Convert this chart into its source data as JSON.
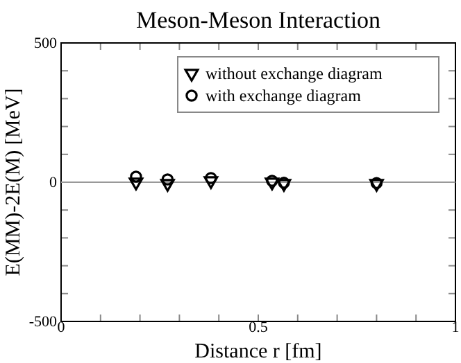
{
  "chart_data": {
    "type": "scatter",
    "title": "Meson-Meson Interaction",
    "xlabel": "Distance r [fm]",
    "ylabel": "E(MM)-2E(M) [MeV]",
    "xlim": [
      0,
      1
    ],
    "ylim": [
      -500,
      500
    ],
    "xticks": [
      0,
      {
        "value": 0.1,
        "label": null
      },
      {
        "value": 0.2,
        "label": null
      },
      {
        "value": 0.3,
        "label": null
      },
      {
        "value": 0.4,
        "label": null
      },
      0.5,
      {
        "value": 0.6,
        "label": null
      },
      {
        "value": 0.7,
        "label": null
      },
      {
        "value": 0.8,
        "label": null
      },
      {
        "value": 0.9,
        "label": null
      },
      1
    ],
    "yticks": [
      -500,
      {
        "value": -400,
        "label": null
      },
      {
        "value": -300,
        "label": null
      },
      {
        "value": -200,
        "label": null
      },
      {
        "value": -100,
        "label": null
      },
      0,
      {
        "value": 100,
        "label": null
      },
      {
        "value": 200,
        "label": null
      },
      {
        "value": 300,
        "label": null
      },
      {
        "value": 400,
        "label": null
      },
      500
    ],
    "x": [
      0.19,
      0.27,
      0.38,
      0.535,
      0.565,
      0.8
    ],
    "legend": "top right",
    "grid": false,
    "ref_lines": [
      {
        "axis": "y",
        "value": 0,
        "color": "#999999"
      }
    ],
    "series": [
      {
        "name": "without exchange diagram",
        "color": "#000000",
        "marker": "triangle",
        "values": [
          0,
          -5,
          5,
          0,
          -5,
          -5
        ]
      },
      {
        "name": "with exchange diagram",
        "color": "#000000",
        "marker": "circle",
        "values": [
          20,
          10,
          15,
          5,
          -2,
          -3
        ]
      }
    ]
  }
}
